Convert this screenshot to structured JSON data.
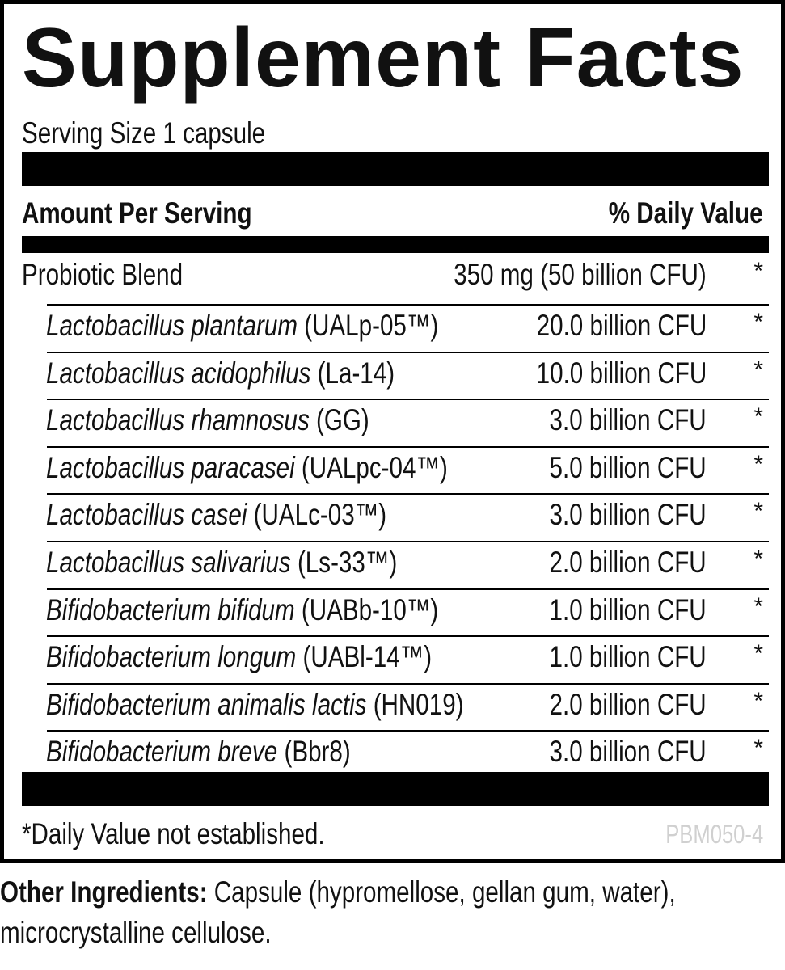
{
  "title": "Supplement Facts",
  "serving_size": "Serving Size 1 capsule",
  "header": {
    "amount_per_serving": "Amount Per Serving",
    "daily_value": "% Daily Value"
  },
  "blend": {
    "name": "Probiotic Blend",
    "amount": "350 mg (50 billion CFU)",
    "dv": "*"
  },
  "ingredients": [
    {
      "species": "Lactobacillus plantarum",
      "strain": " (UALp-05™)",
      "amount": "20.0 billion CFU",
      "dv": "*"
    },
    {
      "species": "Lactobacillus acidophilus",
      "strain": " (La-14)",
      "amount": "10.0 billion CFU",
      "dv": "*"
    },
    {
      "species": "Lactobacillus rhamnosus",
      "strain": " (GG)",
      "amount": "3.0 billion CFU",
      "dv": "*"
    },
    {
      "species": "Lactobacillus paracasei",
      "strain": " (UALpc-04™)",
      "amount": "5.0 billion CFU",
      "dv": "*"
    },
    {
      "species": "Lactobacillus casei",
      "strain": " (UALc-03™)",
      "amount": "3.0 billion CFU",
      "dv": "*"
    },
    {
      "species": "Lactobacillus salivarius",
      "strain": " (Ls-33™)",
      "amount": "2.0 billion CFU",
      "dv": "*"
    },
    {
      "species": "Bifidobacterium bifidum",
      "strain": " (UABb-10™)",
      "amount": "1.0 billion CFU",
      "dv": "*"
    },
    {
      "species": "Bifidobacterium longum",
      "strain": " (UABl-14™)",
      "amount": "1.0 billion CFU",
      "dv": "*"
    },
    {
      "species": "Bifidobacterium animalis lactis",
      "strain": " (HN019)",
      "amount": "2.0 billion CFU",
      "dv": "*"
    },
    {
      "species": "Bifidobacterium breve",
      "strain": " (Bbr8)",
      "amount": "3.0 billion CFU",
      "dv": "*"
    }
  ],
  "footnote": "*Daily Value not established.",
  "code": "PBM050-4",
  "other_ingredients": {
    "label": "Other Ingredients:",
    "line1": " Capsule (hypromellose, gellan gum, water),",
    "line2": "microcrystalline cellulose."
  }
}
